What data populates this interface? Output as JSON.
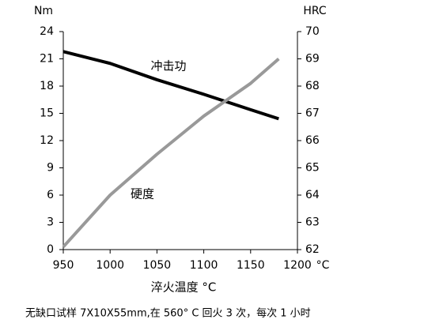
{
  "chart_data": {
    "type": "line",
    "y_unit": "Nm",
    "y2_unit": "HRC",
    "x_unit": "°C",
    "xlabel": "淬火温度 °C",
    "x": [
      950,
      1000,
      1050,
      1100,
      1150,
      1180
    ],
    "series": [
      {
        "name": "冲击功",
        "color": "#000000",
        "values": [
          21.8,
          20.5,
          18.7,
          17.1,
          15.4,
          14.4
        ]
      },
      {
        "name": "硬度",
        "color": "#999999",
        "axis": "y2",
        "values": [
          62.1,
          64.0,
          65.5,
          66.9,
          68.1,
          69.0
        ]
      }
    ],
    "xlim": [
      950,
      1200
    ],
    "xticks": [
      950,
      1000,
      1050,
      1100,
      1150,
      1200
    ],
    "ylim": [
      0,
      24
    ],
    "yticks": [
      0,
      3,
      6,
      9,
      12,
      15,
      18,
      21,
      24
    ],
    "y2lim": [
      62,
      70
    ],
    "y2ticks": [
      62,
      63,
      64,
      65,
      66,
      67,
      68,
      69,
      70
    ],
    "grid": false,
    "note": "无缺口试样 7X10X55mm,在 560° C 回火 3 次，每次 1 小时"
  }
}
